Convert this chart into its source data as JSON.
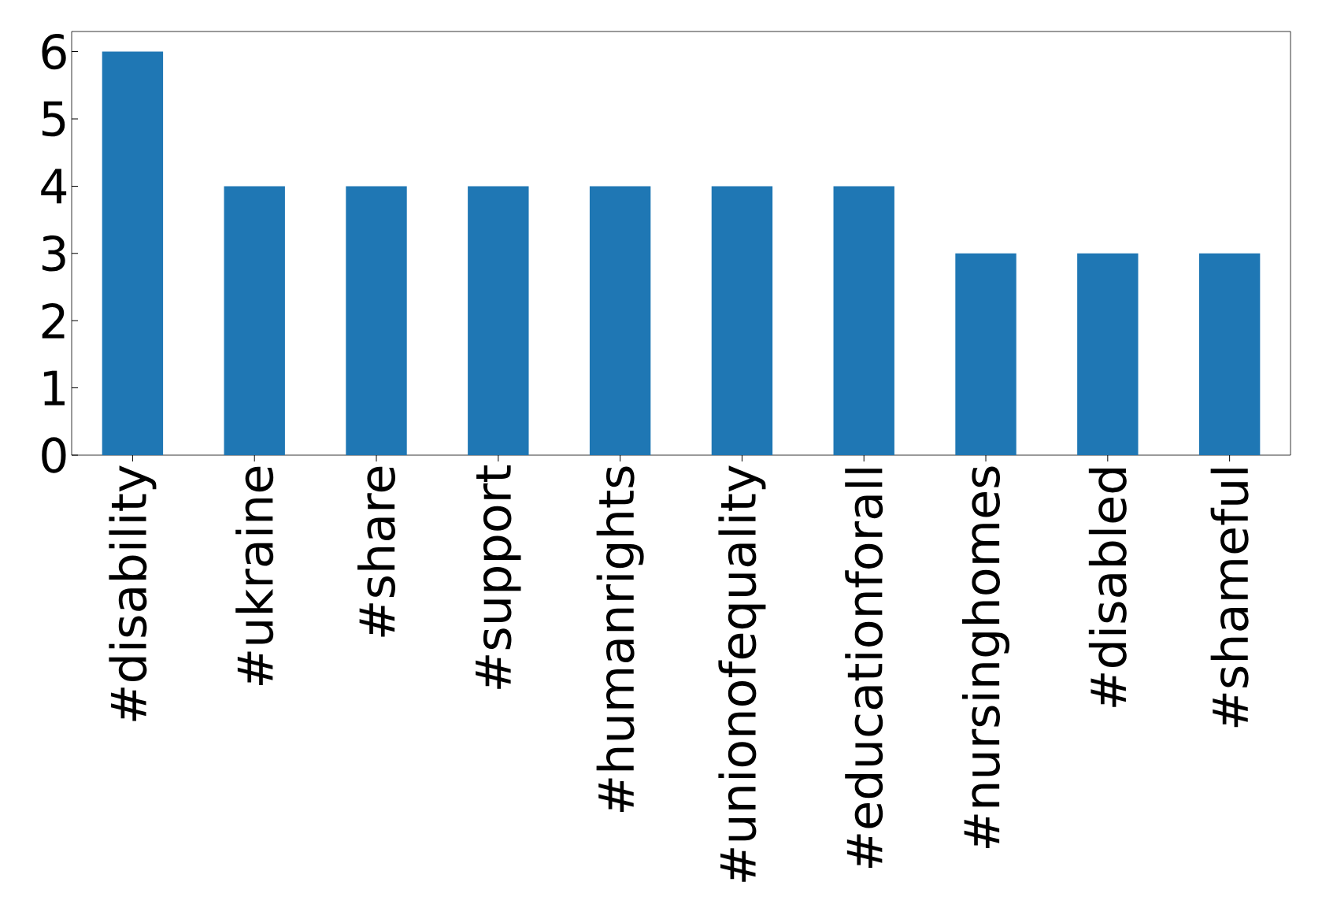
{
  "chart_data": {
    "type": "bar",
    "categories": [
      "#disability",
      "#ukraine",
      "#share",
      "#support",
      "#humanrights",
      "#unionofequality",
      "#educationforall",
      "#nursinghomes",
      "#disabled",
      "#shameful"
    ],
    "values": [
      6,
      4,
      4,
      4,
      4,
      4,
      4,
      3,
      3,
      3
    ],
    "color": "#1f77b4",
    "ylim": [
      0,
      6.3
    ],
    "yticks": [
      0,
      1,
      2,
      3,
      4,
      5,
      6
    ],
    "grid": false
  }
}
